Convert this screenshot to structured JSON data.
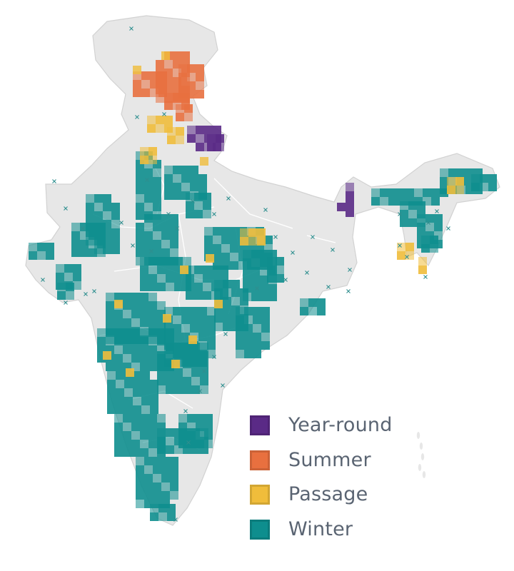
{
  "map": {
    "colors": {
      "land": "#e7e7e7",
      "land_edge": "#d2d2d2",
      "internal_borders": "#ffffff",
      "sighting_marker": "#2f8f8f"
    },
    "legend": [
      {
        "label": "Year-round",
        "color": "#5a2a86",
        "key": "year_round"
      },
      {
        "label": "Summer",
        "color": "#e8703f",
        "key": "summer"
      },
      {
        "label": "Passage",
        "color": "#f0bd3b",
        "key": "passage"
      },
      {
        "label": "Winter",
        "color": "#0e8e8e",
        "key": "winter"
      }
    ],
    "marker_icon": "x-cross-icon"
  }
}
